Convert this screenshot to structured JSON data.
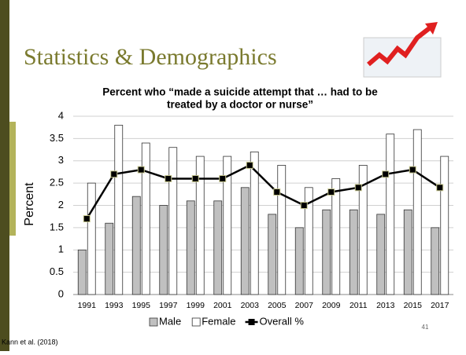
{
  "slide_title": "Statistics & Demographics",
  "citation": "Kann et al. (2018)",
  "slide_number": "41",
  "chart_data": {
    "type": "bar_line",
    "title_lines": [
      "Percent who “made a suicide attempt that … had to be",
      "treated by a doctor or nurse”"
    ],
    "y_label": "Percent",
    "categories": [
      "1991",
      "1993",
      "1995",
      "1997",
      "1999",
      "2001",
      "2003",
      "2005",
      "2007",
      "2009",
      "2011",
      "2013",
      "2015",
      "2017"
    ],
    "series": [
      {
        "name": "Male",
        "kind": "bar",
        "color": "#c0c0c0",
        "values": [
          1.0,
          1.6,
          2.2,
          2.0,
          2.1,
          2.1,
          2.4,
          1.8,
          1.5,
          1.9,
          1.9,
          1.8,
          1.9,
          1.5
        ]
      },
      {
        "name": "Female",
        "kind": "bar",
        "color": "#ffffff",
        "values": [
          2.5,
          3.8,
          3.4,
          3.3,
          3.1,
          3.1,
          3.2,
          2.9,
          2.4,
          2.6,
          2.9,
          3.6,
          3.7,
          3.1
        ]
      },
      {
        "name": "Overall %",
        "kind": "line",
        "color": "#000000",
        "values": [
          1.7,
          2.7,
          2.8,
          2.6,
          2.6,
          2.6,
          2.9,
          2.3,
          2.0,
          2.3,
          2.4,
          2.7,
          2.8,
          2.4
        ]
      }
    ],
    "ylim": [
      0,
      4
    ],
    "yticks": [
      0,
      0.5,
      1,
      1.5,
      2,
      2.5,
      3,
      3.5,
      4
    ],
    "grid": true
  }
}
